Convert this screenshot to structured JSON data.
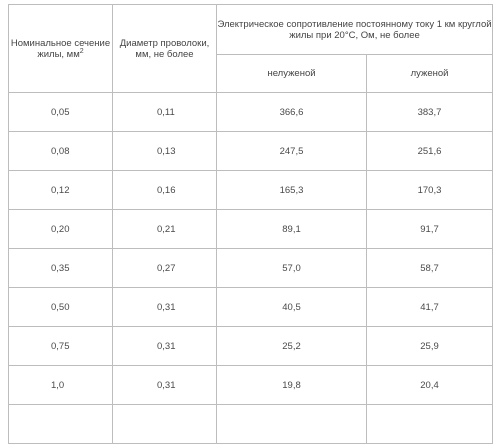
{
  "table": {
    "headers": {
      "section_text": "Номинальное сечение жилы, мм",
      "section_sup": "2",
      "diameter": "Диаметр проволоки, мм, не более",
      "resistance_group": "Электрическое сопротивление постоянному току 1 км круглой жилы при 20°С, Ом, не более",
      "untinned": "нелуженой",
      "tinned": "луженой"
    },
    "rows": [
      [
        "0,05",
        "0,11",
        "366,6",
        "383,7"
      ],
      [
        "0,08",
        "0,13",
        "247,5",
        "251,6"
      ],
      [
        "0,12",
        "0,16",
        "165,3",
        "170,3"
      ],
      [
        "0,20",
        "0,21",
        "89,1",
        "91,7"
      ],
      [
        "0,35",
        "0,27",
        "57,0",
        "58,7"
      ],
      [
        "0,50",
        "0,31",
        "40,5",
        "41,7"
      ],
      [
        "0,75",
        "0,31",
        "25,2",
        "25,9"
      ],
      [
        "1,0",
        "0,31",
        "19,8",
        "20,4"
      ]
    ]
  }
}
